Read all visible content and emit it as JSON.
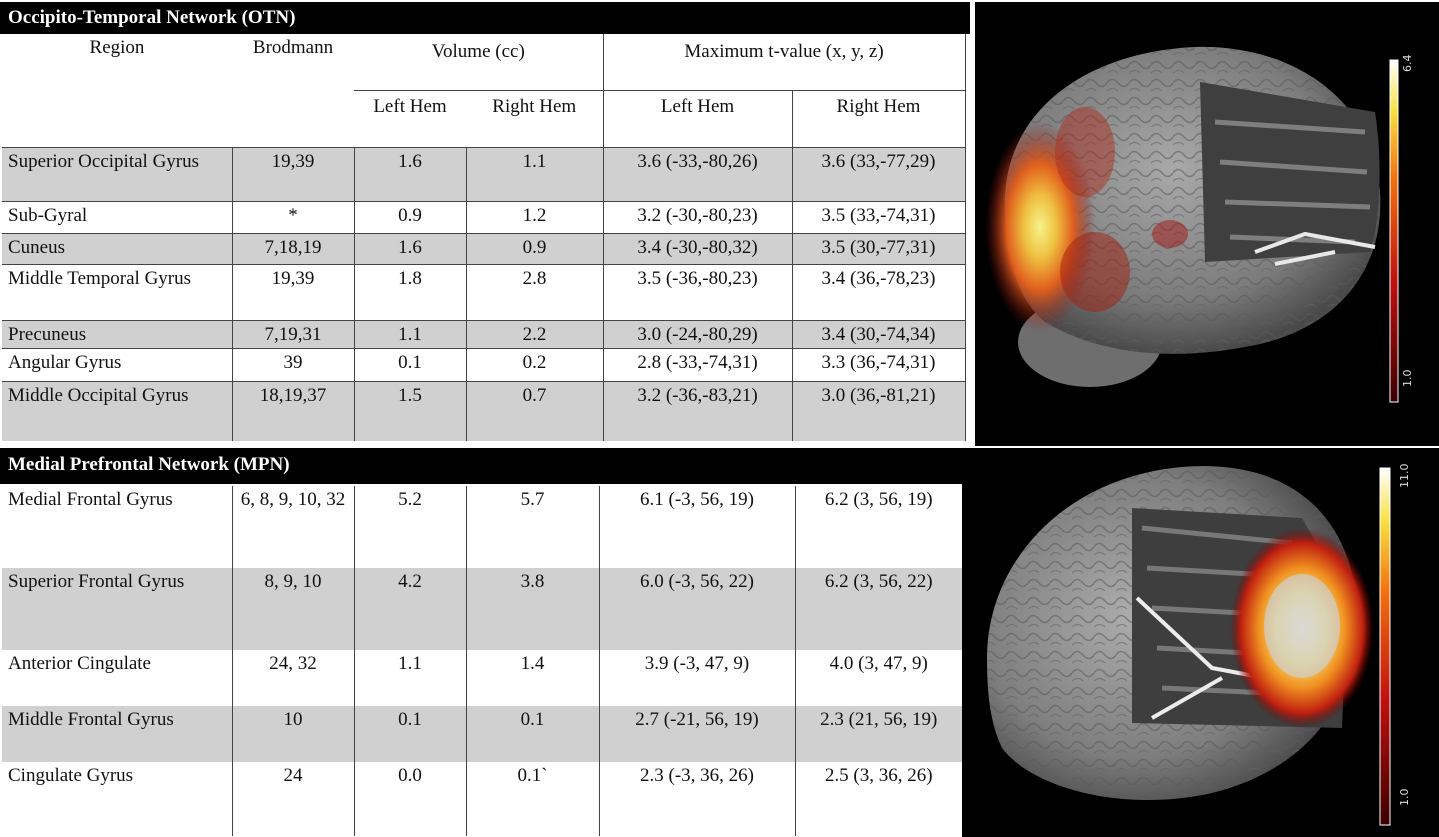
{
  "otn": {
    "title": "Occipito-Temporal Network  (OTN)",
    "headers": {
      "region": "Region",
      "brodmann": "Brodmann",
      "volume": "Volume (cc)",
      "max_t": "Maximum t-value (x, y, z)",
      "left_hem": "Left Hem",
      "right_hem": "Right Hem"
    },
    "rows": [
      {
        "region": "Superior Occipital Gyrus",
        "brodmann": "19,39",
        "vol_left": "1.6",
        "vol_right": "1.1",
        "t_left": "3.6 (-33,-80,26)",
        "t_right": "3.6 (33,-77,29)"
      },
      {
        "region": "Sub-Gyral",
        "brodmann": "*",
        "vol_left": "0.9",
        "vol_right": "1.2",
        "t_left": "3.2 (-30,-80,23)",
        "t_right": "3.5 (33,-74,31)"
      },
      {
        "region": "Cuneus",
        "brodmann": "7,18,19",
        "vol_left": "1.6",
        "vol_right": "0.9",
        "t_left": "3.4 (-30,-80,32)",
        "t_right": "3.5 (30,-77,31)"
      },
      {
        "region": "Middle Temporal Gyrus",
        "brodmann": "19,39",
        "vol_left": "1.8",
        "vol_right": "2.8",
        "t_left": "3.5 (-36,-80,23)",
        "t_right": "3.4 (36,-78,23)"
      },
      {
        "region": "Precuneus",
        "brodmann": "7,19,31",
        "vol_left": "1.1",
        "vol_right": "2.2",
        "t_left": "3.0 (-24,-80,29)",
        "t_right": "3.4 (30,-74,34)"
      },
      {
        "region": "Angular Gyrus",
        "brodmann": "39",
        "vol_left": "0.1",
        "vol_right": "0.2",
        "t_left": "2.8 (-33,-74,31)",
        "t_right": "3.3 (36,-74,31)"
      },
      {
        "region": "Middle Occipital Gyrus",
        "brodmann": "18,19,37",
        "vol_left": "1.5",
        "vol_right": "0.7",
        "t_left": "3.2 (-36,-83,21)",
        "t_right": "3.0 (36,-81,21)"
      }
    ],
    "colorbar": {
      "max": "6.4",
      "min": "1.0"
    }
  },
  "mpn": {
    "title": "Medial Prefrontal Network (MPN)",
    "rows": [
      {
        "region": "Medial Frontal Gyrus",
        "brodmann": "6, 8, 9, 10, 32",
        "vol_left": "5.2",
        "vol_right": "5.7",
        "t_left": "6.1 (-3, 56, 19)",
        "t_right": "6.2 (3, 56, 19)"
      },
      {
        "region": "Superior Frontal Gyrus",
        "brodmann": "8, 9, 10",
        "vol_left": "4.2",
        "vol_right": "3.8",
        "t_left": "6.0 (-3, 56, 22)",
        "t_right": "6.2 (3, 56, 22)"
      },
      {
        "region": "Anterior Cingulate",
        "brodmann": "24, 32",
        "vol_left": "1.1",
        "vol_right": "1.4",
        "t_left": "3.9 (-3, 47, 9)",
        "t_right": "4.0 (3, 47, 9)"
      },
      {
        "region": "Middle Frontal Gyrus",
        "brodmann": "10",
        "vol_left": "0.1",
        "vol_right": "0.1",
        "t_left": "2.7 (-21, 56, 19)",
        "t_right": "2.3 (21, 56, 19)"
      },
      {
        "region": "Cingulate Gyrus",
        "brodmann": "24",
        "vol_left": "0.0",
        "vol_right": "0.1`",
        "t_left": "2.3 (-3, 36, 26)",
        "t_right": "2.5 (3, 36, 26)"
      }
    ],
    "colorbar": {
      "max": "11.0",
      "min": "1.0"
    }
  }
}
